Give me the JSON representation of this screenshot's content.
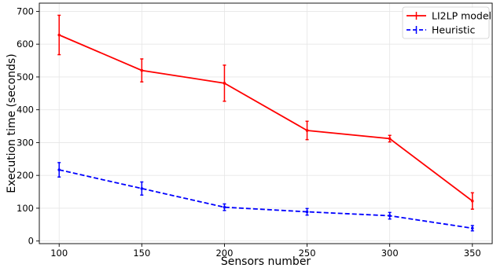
{
  "chart_data": {
    "type": "line",
    "xlabel": "Sensors number",
    "ylabel": "Execution time (seconds)",
    "x": [
      100,
      150,
      200,
      250,
      300,
      350
    ],
    "xlim": [
      88,
      362
    ],
    "ylim": [
      -8,
      725
    ],
    "xticks": [
      100,
      150,
      200,
      250,
      300,
      350
    ],
    "yticks": [
      0,
      100,
      200,
      300,
      400,
      500,
      600,
      700
    ],
    "grid": true,
    "legend_position": "top-right",
    "series": [
      {
        "name": "LI2LP model",
        "color": "#ff0000",
        "style": "solid",
        "values": [
          628,
          520,
          481,
          337,
          312,
          122
        ],
        "errors": [
          60,
          35,
          55,
          28,
          10,
          25
        ]
      },
      {
        "name": "Heuristic",
        "color": "#0000ff",
        "style": "dashed",
        "values": [
          217,
          160,
          103,
          89,
          77,
          39
        ],
        "errors": [
          22,
          20,
          10,
          10,
          10,
          8
        ]
      }
    ]
  }
}
